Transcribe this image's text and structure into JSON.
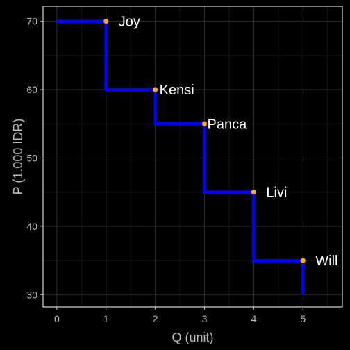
{
  "chart_data": {
    "type": "line",
    "style": "step",
    "xlabel": "Q (unit)",
    "ylabel": "P (1.000 IDR)",
    "xlim": [
      -0.28,
      5.8
    ],
    "ylim": [
      28.2,
      72.2
    ],
    "x_ticks": [
      0,
      1,
      2,
      3,
      4,
      5
    ],
    "y_ticks": [
      30,
      40,
      50,
      60,
      70
    ],
    "grid": true,
    "legend": "none",
    "step_points": [
      {
        "x": 0,
        "y": 70
      },
      {
        "x": 1,
        "y": 70
      },
      {
        "x": 1,
        "y": 60
      },
      {
        "x": 2,
        "y": 60
      },
      {
        "x": 2,
        "y": 55
      },
      {
        "x": 3,
        "y": 55
      },
      {
        "x": 3,
        "y": 45
      },
      {
        "x": 4,
        "y": 45
      },
      {
        "x": 4,
        "y": 35
      },
      {
        "x": 5,
        "y": 35
      },
      {
        "x": 5,
        "y": 30
      }
    ],
    "points": [
      {
        "x": 1,
        "y": 70,
        "label": "Joy"
      },
      {
        "x": 2,
        "y": 60,
        "label": "Kensi"
      },
      {
        "x": 3,
        "y": 55,
        "label": "Panca"
      },
      {
        "x": 4,
        "y": 45,
        "label": "Livi"
      },
      {
        "x": 5,
        "y": 35,
        "label": "Will"
      }
    ],
    "colors": {
      "background": "#000000",
      "panel_border": "#ffffff",
      "grid_major": "#2e2e2e",
      "grid_minor": "#1a1a1a",
      "line": "#0000ff",
      "point": "#ffa500",
      "label": "#ffffff",
      "axis_text": "#bdbdbd"
    }
  }
}
